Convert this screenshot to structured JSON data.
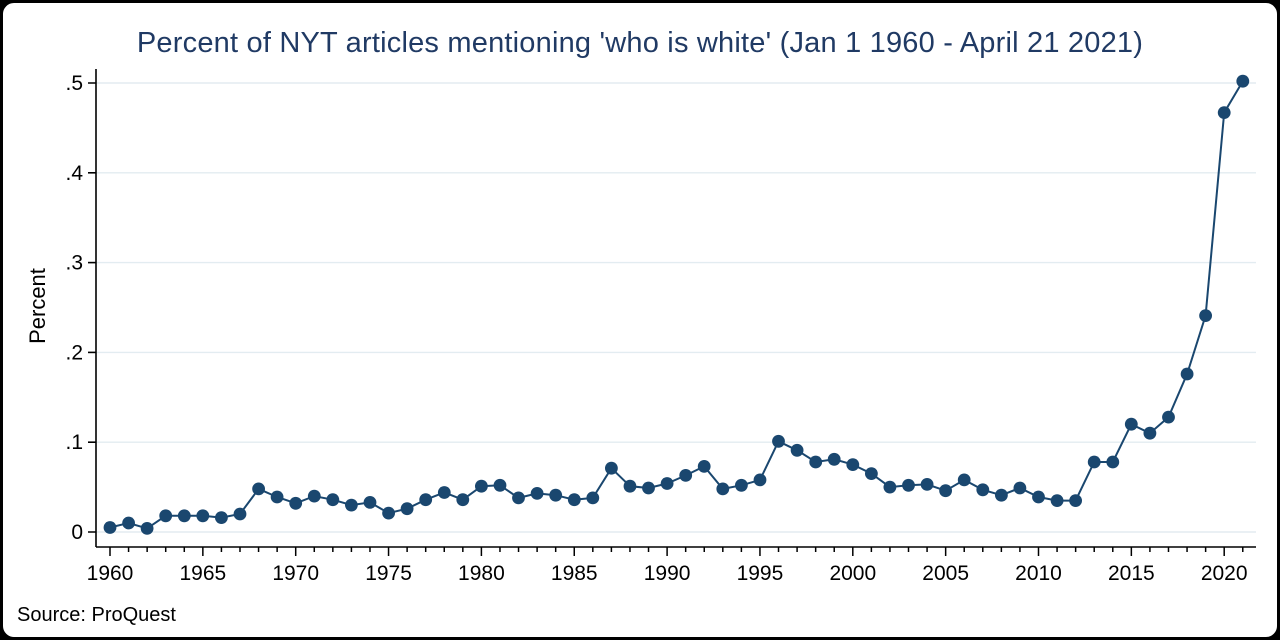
{
  "frame": {
    "background_color": "#000000",
    "card_color": "#ffffff"
  },
  "chart_data": {
    "type": "line",
    "title": "Percent of NYT articles mentioning 'who is white' (Jan 1 1960 - April 21 2021)",
    "xlabel": "",
    "ylabel": "Percent",
    "source": "Source: ProQuest",
    "xlim": [
      1960,
      2021
    ],
    "ylim": [
      0,
      0.5
    ],
    "grid": true,
    "legend": "none",
    "title_color": "#203a64",
    "line_color": "#1a476f",
    "marker_color": "#1a476f",
    "gridline_color": "#e3ecf1",
    "axis_color": "#000000",
    "x_ticks": [
      1960,
      1965,
      1970,
      1975,
      1980,
      1985,
      1990,
      1995,
      2000,
      2005,
      2010,
      2015,
      2020
    ],
    "y_ticks": [
      {
        "value": 0,
        "label": "0"
      },
      {
        "value": 0.1,
        "label": ".1"
      },
      {
        "value": 0.2,
        "label": ".2"
      },
      {
        "value": 0.3,
        "label": ".3"
      },
      {
        "value": 0.4,
        "label": ".4"
      },
      {
        "value": 0.5,
        "label": ".5"
      }
    ],
    "x": [
      1960,
      1961,
      1962,
      1963,
      1964,
      1965,
      1966,
      1967,
      1968,
      1969,
      1970,
      1971,
      1972,
      1973,
      1974,
      1975,
      1976,
      1977,
      1978,
      1979,
      1980,
      1981,
      1982,
      1983,
      1984,
      1985,
      1986,
      1987,
      1988,
      1989,
      1990,
      1991,
      1992,
      1993,
      1994,
      1995,
      1996,
      1997,
      1998,
      1999,
      2000,
      2001,
      2002,
      2003,
      2004,
      2005,
      2006,
      2007,
      2008,
      2009,
      2010,
      2011,
      2012,
      2013,
      2014,
      2015,
      2016,
      2017,
      2018,
      2019,
      2020,
      2021
    ],
    "values": [
      0.005,
      0.01,
      0.004,
      0.018,
      0.018,
      0.018,
      0.016,
      0.02,
      0.048,
      0.039,
      0.032,
      0.04,
      0.036,
      0.03,
      0.033,
      0.021,
      0.026,
      0.036,
      0.044,
      0.036,
      0.051,
      0.052,
      0.038,
      0.043,
      0.041,
      0.036,
      0.038,
      0.071,
      0.051,
      0.049,
      0.054,
      0.063,
      0.073,
      0.048,
      0.052,
      0.058,
      0.101,
      0.091,
      0.078,
      0.081,
      0.075,
      0.065,
      0.05,
      0.052,
      0.053,
      0.046,
      0.058,
      0.047,
      0.041,
      0.049,
      0.039,
      0.035,
      0.035,
      0.078,
      0.078,
      0.12,
      0.11,
      0.128,
      0.176,
      0.241,
      0.467,
      0.502
    ]
  }
}
